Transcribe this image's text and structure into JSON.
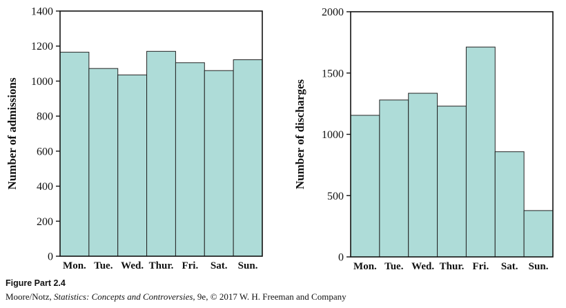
{
  "chart_data": [
    {
      "type": "bar",
      "ylabel": "Number of admissions",
      "categories": [
        "Mon.",
        "Tue.",
        "Wed.",
        "Thur.",
        "Fri.",
        "Sat.",
        "Sun."
      ],
      "values": [
        1165,
        1072,
        1035,
        1170,
        1105,
        1060,
        1122
      ],
      "ylim": [
        0,
        1400
      ],
      "yticks": [
        0,
        200,
        400,
        600,
        800,
        1000,
        1200,
        1400
      ],
      "bar_color": "#aedcd8",
      "grid": false
    },
    {
      "type": "bar",
      "ylabel": "Number of discharges",
      "categories": [
        "Mon.",
        "Tue.",
        "Wed.",
        "Thur.",
        "Fri.",
        "Sat.",
        "Sun."
      ],
      "values": [
        1155,
        1280,
        1335,
        1230,
        1712,
        858,
        378
      ],
      "ylim": [
        0,
        2000
      ],
      "yticks": [
        0,
        500,
        1000,
        1500,
        2000
      ],
      "bar_color": "#aedcd8",
      "grid": false
    }
  ],
  "caption": {
    "figure_label": "Figure Part 2.4",
    "credit_prefix": "Moore/Notz, ",
    "credit_title": "Statistics: Concepts and Controversies,",
    "credit_suffix": " 9e, © 2017 W. H. Freeman and Company"
  }
}
